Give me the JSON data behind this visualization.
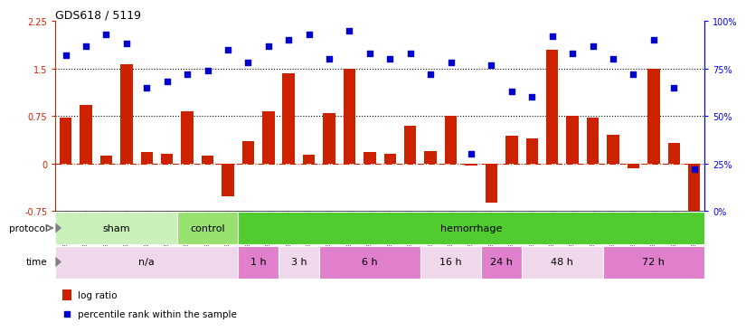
{
  "title": "GDS618 / 5119",
  "samples": [
    "GSM16636",
    "GSM16640",
    "GSM16641",
    "GSM16642",
    "GSM16643",
    "GSM16644",
    "GSM16637",
    "GSM16638",
    "GSM16639",
    "GSM16645",
    "GSM16646",
    "GSM16647",
    "GSM16648",
    "GSM16649",
    "GSM16650",
    "GSM16651",
    "GSM16652",
    "GSM16653",
    "GSM16654",
    "GSM16655",
    "GSM16656",
    "GSM16657",
    "GSM16658",
    "GSM16659",
    "GSM16660",
    "GSM16661",
    "GSM16662",
    "GSM16663",
    "GSM16664",
    "GSM16666",
    "GSM16667",
    "GSM16668"
  ],
  "log_ratio": [
    0.72,
    0.92,
    0.13,
    1.57,
    0.18,
    0.16,
    0.82,
    0.13,
    -0.52,
    0.35,
    0.82,
    1.43,
    0.14,
    0.8,
    1.5,
    0.18,
    0.16,
    0.6,
    0.2,
    0.75,
    -0.03,
    -0.62,
    0.44,
    0.4,
    1.8,
    0.75,
    0.73,
    0.45,
    -0.07,
    1.5,
    0.33,
    -0.82
  ],
  "percentile": [
    82,
    87,
    93,
    88,
    65,
    68,
    72,
    74,
    85,
    78,
    87,
    90,
    93,
    80,
    95,
    83,
    80,
    83,
    72,
    78,
    30,
    77,
    63,
    60,
    92,
    83,
    87,
    80,
    72,
    90,
    65,
    22
  ],
  "protocol_groups": [
    {
      "label": "sham",
      "start": 0,
      "end": 6,
      "color": "#c8f0b8"
    },
    {
      "label": "control",
      "start": 6,
      "end": 9,
      "color": "#98e070"
    },
    {
      "label": "hemorrhage",
      "start": 9,
      "end": 32,
      "color": "#50cc30"
    }
  ],
  "time_groups": [
    {
      "label": "n/a",
      "start": 0,
      "end": 9,
      "color": "#f0d8ec"
    },
    {
      "label": "1 h",
      "start": 9,
      "end": 11,
      "color": "#e080cc"
    },
    {
      "label": "3 h",
      "start": 11,
      "end": 13,
      "color": "#f0d8ec"
    },
    {
      "label": "6 h",
      "start": 13,
      "end": 18,
      "color": "#e080cc"
    },
    {
      "label": "16 h",
      "start": 18,
      "end": 21,
      "color": "#f0d8ec"
    },
    {
      "label": "24 h",
      "start": 21,
      "end": 23,
      "color": "#e080cc"
    },
    {
      "label": "48 h",
      "start": 23,
      "end": 27,
      "color": "#f0d8ec"
    },
    {
      "label": "72 h",
      "start": 27,
      "end": 32,
      "color": "#e080cc"
    }
  ],
  "ylim_left": [
    -0.75,
    2.25
  ],
  "ylim_right": [
    0,
    100
  ],
  "bar_color": "#cc2200",
  "scatter_color": "#0000cc",
  "hline_color": "#cc2200",
  "dotted_lines": [
    0.75,
    1.5
  ],
  "left_yticks": [
    -0.75,
    0,
    0.75,
    1.5,
    2.25
  ],
  "right_yticks": [
    0,
    25,
    50,
    75,
    100
  ],
  "right_yticklabels": [
    "0%",
    "25%",
    "50%",
    "75%",
    "100%"
  ]
}
